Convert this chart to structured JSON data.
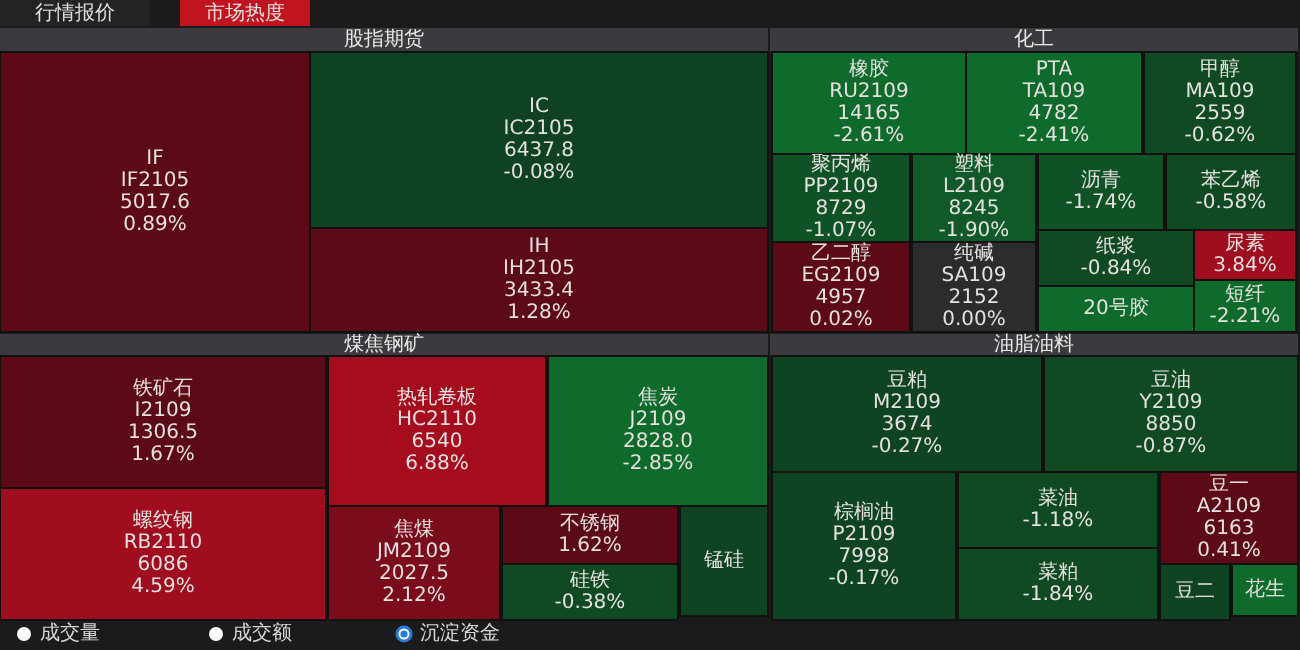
{
  "chart_data": [
    {
      "type": "other",
      "title": "股指期货",
      "categories": [
        "IF",
        "IC",
        "IH"
      ],
      "values": [
        0.89,
        -0.08,
        1.28
      ],
      "value_labels": [
        "IF2105\n5017.6\n0.89%",
        "IC2105\n6437.8\n-0.08%",
        "IH2105\n3433.4\n1.28%"
      ],
      "colors": [
        "#5c0b16",
        "#0e4222",
        "#5c0b16"
      ]
    },
    {
      "type": "other",
      "title": "化工",
      "categories": [
        "橡胶",
        "PTA",
        "甲醇",
        "聚丙烯",
        "塑料",
        "沥青",
        "苯乙烯",
        "乙二醇",
        "纯碱",
        "纸浆",
        "20号胶",
        "尿素",
        "短纤"
      ],
      "values": [
        -2.61,
        -2.41,
        -0.62,
        -1.07,
        -1.9,
        -1.74,
        -0.58,
        0.02,
        0.0,
        -0.84,
        null,
        3.84,
        -2.21
      ],
      "value_labels": [
        "RU2109\n14165\n-2.61%",
        "TA109\n4782\n-2.41%",
        "MA109\n2559\n-0.62%",
        "PP2109\n8729\n-1.07%",
        "L2109\n8245\n-1.90%",
        "-1.74%",
        "-0.58%",
        "EG2109\n4957\n0.02%",
        "SA109\n2152\n0.00%",
        "-0.84%",
        null,
        "3.84%",
        "-2.21%"
      ],
      "colors": [
        "#0f6b2c",
        "#0f6b2c",
        "#0f4a23",
        "#0f5226",
        "#0f5a28",
        "#0f5226",
        "#0f4a23",
        "#5c0b16",
        "#2c2c2e",
        "#0f4a23",
        "#0f6b2c",
        "#a00d1e",
        "#0f6b2c"
      ]
    },
    {
      "type": "other",
      "title": "煤焦钢矿",
      "categories": [
        "铁矿石",
        "螺纹钢",
        "热轧卷板",
        "焦炭",
        "焦煤",
        "不锈钢",
        "硅铁",
        "锰硅"
      ],
      "values": [
        1.67,
        4.59,
        6.88,
        -2.85,
        2.12,
        1.62,
        -0.38,
        null
      ],
      "value_labels": [
        "I2109\n1306.5\n1.67%",
        "RB2110\n6086\n4.59%",
        "HC2110\n6540\n6.88%",
        "J2109\n2828.0\n-2.85%",
        "JM2109\n2027.5\n2.12%",
        "1.62%",
        "-0.38%",
        null
      ],
      "colors": [
        "#5c0b16",
        "#a00d1e",
        "#a50d1f",
        "#0f6b2c",
        "#7a0c1b",
        "#5c0b16",
        "#0f4a23",
        "#0f4422"
      ]
    },
    {
      "type": "other",
      "title": "油脂油料",
      "categories": [
        "豆粕",
        "豆油",
        "棕榈油",
        "菜油",
        "菜粕",
        "豆一",
        "豆二",
        "花生"
      ],
      "values": [
        -0.27,
        -0.87,
        -0.17,
        -1.18,
        -1.84,
        0.41,
        null,
        null
      ],
      "value_labels": [
        "M2109\n3674\n-0.27%",
        "Y2109\n8850\n-0.87%",
        "P2109\n7998\n-0.17%",
        "-1.18%",
        "-1.84%",
        "A2109\n6163\n0.41%",
        null,
        null
      ],
      "colors": [
        "#0f4422",
        "#0f4a23",
        "#0f4422",
        "#0f4a23",
        "#0f4a23",
        "#5c0b16",
        "#0f4422",
        "#0f6b2c"
      ]
    },
    {
      "type": "other",
      "annotations": [
        "行情报价",
        "市场热度",
        "成交量",
        "成交额",
        "沉淀资金"
      ]
    }
  ]
}
